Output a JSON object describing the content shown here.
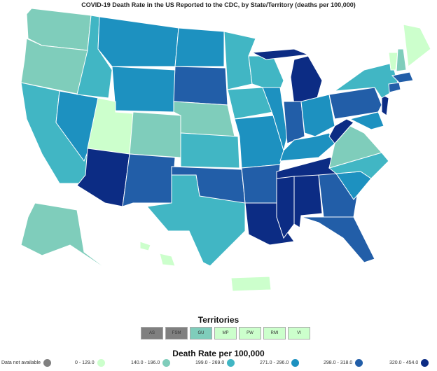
{
  "title": "COVID-19 Death Rate in the US Reported to the CDC, by State/Territory (deaths per 100,000)",
  "territories_title": "Territories",
  "territories": [
    {
      "label": "AS",
      "cat": 0
    },
    {
      "label": "FSM",
      "cat": 0
    },
    {
      "label": "GU",
      "cat": 2
    },
    {
      "label": "MP",
      "cat": 1
    },
    {
      "label": "PW",
      "cat": 1
    },
    {
      "label": "RMI",
      "cat": 1
    },
    {
      "label": "VI",
      "cat": 1
    }
  ],
  "legend_title": "Death Rate per 100,000",
  "legend": [
    {
      "label": "Data not available",
      "color": "#808080"
    },
    {
      "label": "0 - 129.0",
      "color": "#ccffcc"
    },
    {
      "label": "140.0 - 196.0",
      "color": "#7fcdbb"
    },
    {
      "label": "199.0 - 269.0",
      "color": "#41b6c4"
    },
    {
      "label": "271.0 - 296.0",
      "color": "#1d91c0"
    },
    {
      "label": "298.0 - 318.0",
      "color": "#225ea8"
    },
    {
      "label": "320.0 - 454.0",
      "color": "#0c2c84"
    }
  ],
  "states": {
    "WA": 2,
    "OR": 2,
    "CA": 3,
    "NV": 4,
    "ID": 3,
    "MT": 4,
    "WY": 4,
    "UT": 1,
    "CO": 2,
    "AZ": 6,
    "NM": 5,
    "ND": 4,
    "SD": 5,
    "NE": 2,
    "KS": 3,
    "OK": 5,
    "TX": 3,
    "MN": 3,
    "IA": 3,
    "MO": 4,
    "AR": 5,
    "LA": 6,
    "WI": 3,
    "IL": 4,
    "MI": 6,
    "IN": 5,
    "OH": 4,
    "KY": 4,
    "TN": 6,
    "MS": 6,
    "AL": 6,
    "GA": 5,
    "FL": 5,
    "SC": 4,
    "NC": 3,
    "VA": 2,
    "WV": 6,
    "MD": 4,
    "PA": 5,
    "NJ": 6,
    "NY": 3,
    "CT": 5,
    "MA": 5,
    "VT": 1,
    "NH": 2,
    "ME": 1,
    "AK": 2,
    "HI": 1,
    "PR": 1
  }
}
